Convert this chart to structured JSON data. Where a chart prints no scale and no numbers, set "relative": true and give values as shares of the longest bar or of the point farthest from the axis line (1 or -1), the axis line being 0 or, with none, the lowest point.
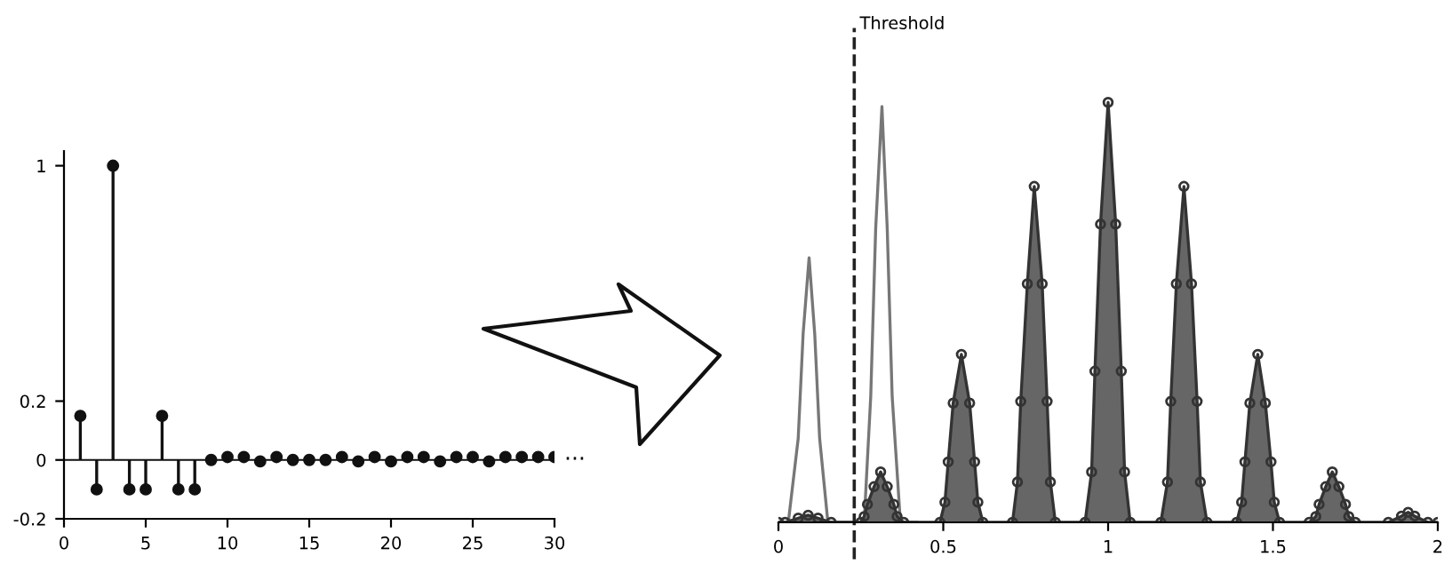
{
  "chart_data": [
    {
      "type": "lollipop",
      "x": [
        1,
        2,
        3,
        4,
        5,
        6,
        7,
        8,
        9,
        10,
        11,
        12,
        13,
        14,
        15,
        16,
        17,
        18,
        19,
        20,
        21,
        22,
        23,
        24,
        25,
        26,
        27,
        28,
        29,
        30
      ],
      "values": [
        0.15,
        -0.1,
        1,
        -0.1,
        -0.1,
        0.15,
        -0.1,
        -0.1,
        0,
        0.01,
        0.01,
        -0.005,
        0.01,
        0,
        0,
        0,
        0.01,
        -0.005,
        0.01,
        -0.005,
        0.01,
        0.01,
        -0.005,
        0.01,
        0.01,
        -0.005,
        0.01,
        0.01,
        0.01,
        0.01
      ],
      "color": "#111111",
      "marker": "circle",
      "xlim": [
        0,
        30
      ],
      "xticks": [
        0,
        5,
        10,
        15,
        20,
        25,
        30
      ],
      "ylim": [
        -0.2,
        1.05
      ],
      "yticks": [
        {
          "value": -0.2,
          "label": "-0.2"
        },
        0,
        0.2,
        1
      ],
      "annotations": [
        "···"
      ]
    },
    {
      "type": "line",
      "relative": true,
      "tick_labels": "x",
      "xlim": [
        0,
        2
      ],
      "xticks": [
        0,
        0.5,
        1,
        1.5,
        2
      ],
      "ref_lines": [
        {
          "axis": "x",
          "value": 0.23,
          "label": "Threshold",
          "color": "#222222",
          "line_style": "dashed"
        }
      ],
      "series": [
        {
          "color": "#777777",
          "marker": "none",
          "x": [
            0,
            0.03,
            0.06,
            0.075,
            0.093,
            0.11,
            0.125,
            0.15,
            0.26,
            0.28,
            0.295,
            0.314,
            0.33,
            0.345,
            0.37,
            0.42
          ],
          "values": [
            0,
            0,
            0.2,
            0.45,
            0.63,
            0.45,
            0.2,
            0,
            0,
            0.3,
            0.7,
            0.99,
            0.7,
            0.3,
            0,
            0
          ]
        },
        {
          "type": "area",
          "color": "#333333",
          "marker": "circle",
          "x": [
            0,
            0.02,
            0.06,
            0.09,
            0.12,
            0.16,
            0.25,
            0.26,
            0.27,
            0.29,
            0.31,
            0.33,
            0.35,
            0.36,
            0.38,
            0.49,
            0.505,
            0.515,
            0.53,
            0.555,
            0.58,
            0.595,
            0.605,
            0.62,
            0.71,
            0.725,
            0.735,
            0.755,
            0.776,
            0.8,
            0.815,
            0.825,
            0.84,
            0.93,
            0.95,
            0.96,
            0.977,
            1.0,
            1.023,
            1.04,
            1.05,
            1.067,
            1.16,
            1.18,
            1.19,
            1.207,
            1.23,
            1.253,
            1.27,
            1.28,
            1.3,
            1.39,
            1.405,
            1.415,
            1.43,
            1.454,
            1.477,
            1.494,
            1.504,
            1.52,
            1.61,
            1.63,
            1.64,
            1.66,
            1.68,
            1.7,
            1.72,
            1.73,
            1.75,
            1.85,
            1.89,
            1.91,
            1.93,
            1.97,
            2
          ],
          "values": [
            0,
            0,
            0.01,
            0.017,
            0.01,
            0,
            0,
            0.014,
            0.043,
            0.085,
            0.12,
            0.085,
            0.043,
            0.014,
            0,
            0,
            0.048,
            0.144,
            0.284,
            0.4,
            0.284,
            0.144,
            0.048,
            0,
            0,
            0.096,
            0.288,
            0.568,
            0.8,
            0.568,
            0.288,
            0.096,
            0,
            0,
            0.12,
            0.36,
            0.71,
            1,
            0.71,
            0.36,
            0.12,
            0,
            0,
            0.096,
            0.288,
            0.568,
            0.8,
            0.568,
            0.288,
            0.096,
            0,
            0,
            0.048,
            0.144,
            0.284,
            0.4,
            0.284,
            0.144,
            0.048,
            0,
            0,
            0.014,
            0.043,
            0.085,
            0.12,
            0.085,
            0.043,
            0.014,
            0,
            0,
            0.015,
            0.024,
            0.015,
            0,
            0
          ]
        }
      ]
    }
  ]
}
